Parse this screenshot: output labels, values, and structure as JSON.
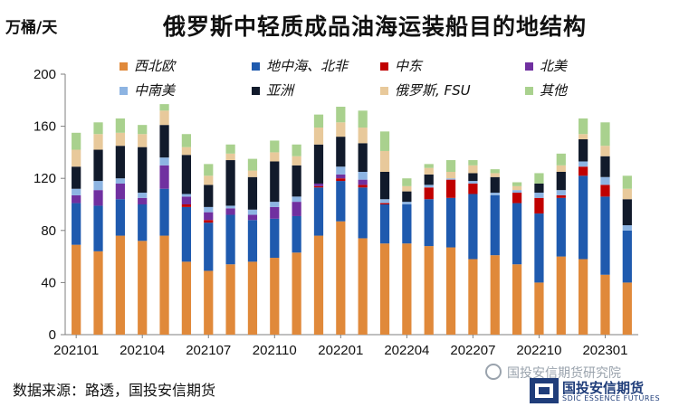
{
  "unit_label": "万桶/天",
  "source": "数据来源：路透，国投安信期货",
  "watermark": "国投安信期货研究院",
  "logo": {
    "cn": "国投安信期货",
    "en": "SDIC ESSENCE FUTURES"
  },
  "chart_data": {
    "type": "stacked-bar",
    "title": "俄罗斯中轻质成品油海运装船目的地结构",
    "ylabel": "万桶/天",
    "ylim": [
      0,
      200
    ],
    "yticks": [
      0,
      40,
      80,
      120,
      160,
      200
    ],
    "categories": [
      "202101",
      "202102",
      "202103",
      "202104",
      "202105",
      "202106",
      "202107",
      "202108",
      "202109",
      "202110",
      "202111",
      "202112",
      "202201",
      "202202",
      "202203",
      "202204",
      "202205",
      "202206",
      "202207",
      "202208",
      "202209",
      "202210",
      "202211",
      "202212",
      "202301",
      "202302"
    ],
    "xtick_labels": [
      "202101",
      "202104",
      "202107",
      "202110",
      "202201",
      "202204",
      "202207",
      "202210",
      "202301"
    ],
    "xtick_indices": [
      0,
      3,
      6,
      9,
      12,
      15,
      18,
      21,
      24
    ],
    "series": [
      {
        "name": "西北欧",
        "color": "#E0893A",
        "values": [
          69,
          64,
          76,
          72,
          76,
          56,
          49,
          54,
          56,
          59,
          63,
          76,
          87,
          74,
          70,
          70,
          68,
          67,
          58,
          61,
          54,
          40,
          60,
          58,
          46,
          40
        ]
      },
      {
        "name": "地中海、北非",
        "color": "#1F5AAE",
        "values": [
          32,
          35,
          28,
          28,
          36,
          42,
          37,
          38,
          32,
          30,
          28,
          37,
          31,
          39,
          30,
          30,
          36,
          38,
          50,
          46,
          47,
          53,
          45,
          64,
          60,
          40
        ]
      },
      {
        "name": "中东",
        "color": "#C00000",
        "values": [
          0,
          0,
          0,
          0,
          0,
          2,
          2,
          0,
          0,
          0,
          0,
          1,
          2,
          2,
          1,
          0,
          9,
          14,
          8,
          0,
          8,
          12,
          2,
          7,
          9,
          0
        ]
      },
      {
        "name": "北美",
        "color": "#7030A0",
        "values": [
          6,
          12,
          12,
          5,
          18,
          6,
          6,
          5,
          4,
          9,
          11,
          2,
          3,
          4,
          0,
          0,
          0,
          0,
          0,
          0,
          0,
          0,
          0,
          0,
          0,
          0
        ]
      },
      {
        "name": "中南美",
        "color": "#8DB4E2",
        "values": [
          5,
          7,
          4,
          4,
          6,
          2,
          4,
          2,
          4,
          4,
          4,
          0,
          6,
          6,
          3,
          2,
          2,
          1,
          2,
          2,
          2,
          4,
          4,
          4,
          6,
          4
        ]
      },
      {
        "name": "亚洲",
        "color": "#111A2B",
        "values": [
          17,
          24,
          25,
          35,
          25,
          30,
          17,
          35,
          25,
          31,
          24,
          30,
          23,
          22,
          21,
          8,
          8,
          0,
          6,
          12,
          0,
          7,
          14,
          17,
          16,
          20
        ]
      },
      {
        "name": "俄罗斯, FSU",
        "color": "#E8C99B",
        "values": [
          13,
          12,
          10,
          10,
          11,
          6,
          7,
          5,
          5,
          7,
          7,
          13,
          11,
          12,
          16,
          4,
          5,
          5,
          6,
          3,
          3,
          0,
          5,
          4,
          8,
          8
        ]
      },
      {
        "name": "其他",
        "color": "#A9D18E",
        "values": [
          13,
          9,
          11,
          7,
          5,
          10,
          9,
          7,
          9,
          9,
          9,
          10,
          12,
          13,
          15,
          6,
          3,
          9,
          4,
          3,
          3,
          8,
          9,
          12,
          18,
          10
        ]
      }
    ]
  }
}
